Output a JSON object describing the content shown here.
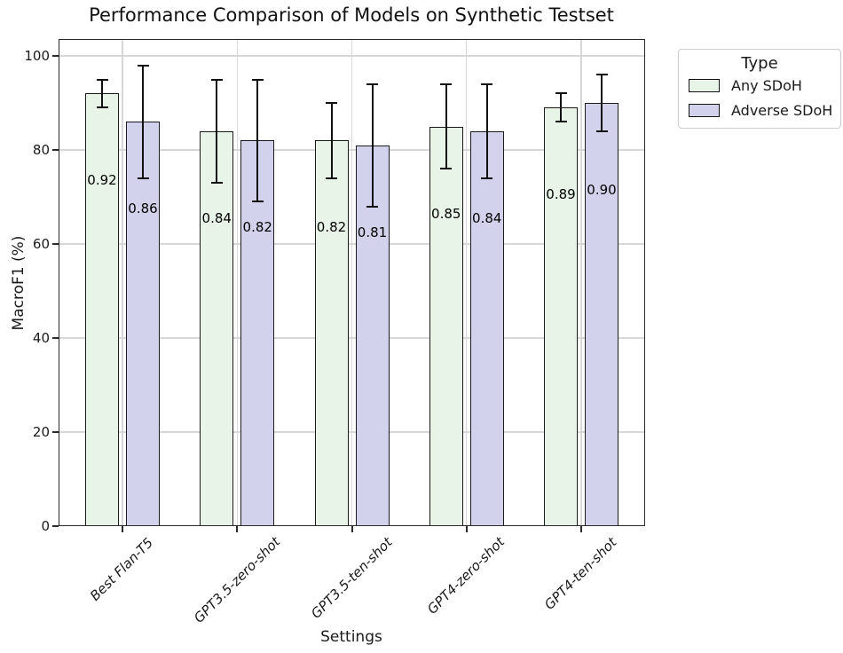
{
  "chart_data": {
    "type": "bar",
    "title": "Performance Comparison of Models on Synthetic Testset",
    "xlabel": "Settings",
    "ylabel": "MacroF1 (%)",
    "ylim": [
      0,
      100
    ],
    "yticks": [
      0,
      20,
      40,
      60,
      80,
      100
    ],
    "grid": true,
    "categories": [
      "Best Flan-T5",
      "GPT3.5-zero-shot",
      "GPT3.5-ten-shot",
      "GPT4-zero-shot",
      "GPT4-ten-shot"
    ],
    "series": [
      {
        "name": "Any SDoH",
        "color": "#e9f4e8",
        "edge_color": "#1a1a1a",
        "values": [
          92,
          84,
          82,
          85,
          89
        ],
        "bar_labels": [
          "0.92",
          "0.84",
          "0.82",
          "0.85",
          "0.89"
        ],
        "error_low": [
          89,
          73,
          74,
          76,
          86
        ],
        "error_high": [
          95,
          95,
          90,
          94,
          92
        ]
      },
      {
        "name": "Adverse SDoH",
        "color": "#d2d2ec",
        "edge_color": "#1a1a1a",
        "values": [
          86,
          82,
          81,
          84,
          90
        ],
        "bar_labels": [
          "0.86",
          "0.82",
          "0.81",
          "0.84",
          "0.90"
        ],
        "error_low": [
          74,
          69,
          68,
          74,
          84
        ],
        "error_high": [
          98,
          95,
          94,
          94,
          96
        ]
      }
    ],
    "legend": {
      "title": "Type",
      "position": "outside upper right"
    }
  }
}
